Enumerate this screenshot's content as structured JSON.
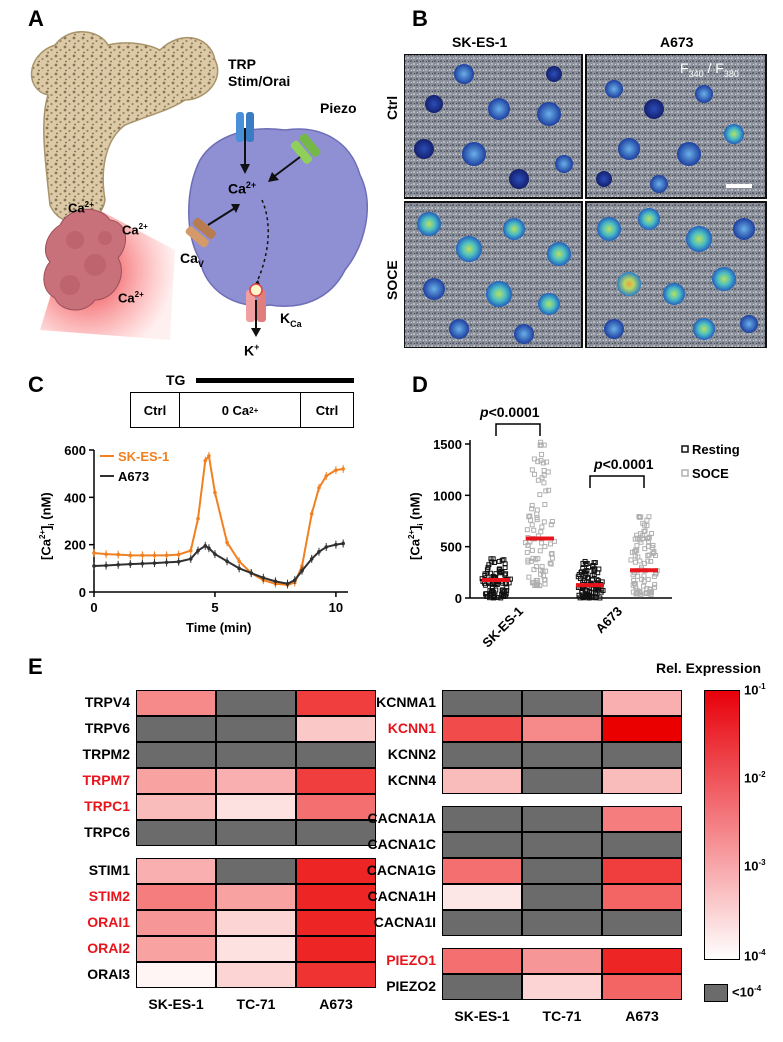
{
  "panels": {
    "a": "A",
    "b": "B",
    "c": "C",
    "d": "D",
    "e": "E"
  },
  "panel_a": {
    "channel_labels": {
      "trp": "TRP",
      "stim_orai": "Stim/Orai",
      "piezo": "Piezo",
      "cav": "Ca",
      "cav_sub": "V",
      "kca": "K",
      "kca_sub": "Ca",
      "kplus": "K",
      "kplus_sup": "+",
      "ca_cell": "Ca",
      "ca_sup": "2+"
    },
    "bone_ca_labels": [
      {
        "text": "Ca",
        "sup": "2+"
      },
      {
        "text": "Ca",
        "sup": "2+"
      },
      {
        "text": "Ca",
        "sup": "2+"
      }
    ],
    "colors": {
      "bone": "#d9c7a3",
      "bone_speckle": "#8b7355",
      "tumor": "#c9717b",
      "cell": "#8f8fd4",
      "trp": "#4a90d9",
      "piezo": "#8fcf5a",
      "cav": "#c98a5a",
      "kca": "#e89090"
    }
  },
  "panel_b": {
    "col_labels": [
      "SK-ES-1",
      "A673"
    ],
    "row_labels": [
      "Ctrl",
      "SOCE"
    ],
    "ratio_label": {
      "a": "F",
      "a_sub": "340",
      "sep": " / ",
      "b": "F",
      "b_sub": "380"
    }
  },
  "panel_c": {
    "tg_label": "TG",
    "protocol": [
      "Ctrl",
      "0 Ca",
      "Ctrl"
    ],
    "protocol_sup": "2+",
    "chart_data": {
      "type": "line",
      "xlabel": "Time (min)",
      "ylabel": "[Ca",
      "ylabel_sup": "2+",
      "ylabel_sub": "i",
      "ylabel_tail": " (nM)",
      "xlim": [
        0,
        10.5
      ],
      "ylim": [
        0,
        600
      ],
      "xticks": [
        0,
        5,
        10
      ],
      "yticks": [
        0,
        200,
        400,
        600
      ],
      "series": [
        {
          "name": "SK-ES-1",
          "color": "#f08020",
          "x": [
            0,
            0.5,
            1,
            1.5,
            2,
            2.5,
            3,
            3.5,
            4,
            4.3,
            4.6,
            4.75,
            5,
            5.5,
            6,
            6.5,
            7,
            7.5,
            8,
            8.3,
            8.6,
            9,
            9.3,
            9.6,
            10,
            10.3
          ],
          "y": [
            165,
            160,
            158,
            155,
            155,
            155,
            155,
            158,
            175,
            310,
            555,
            575,
            420,
            210,
            130,
            80,
            50,
            35,
            30,
            40,
            110,
            330,
            440,
            490,
            515,
            520
          ]
        },
        {
          "name": "A673",
          "color": "#303030",
          "x": [
            0,
            0.5,
            1,
            1.5,
            2,
            2.5,
            3,
            3.5,
            4,
            4.3,
            4.6,
            4.75,
            5,
            5.5,
            6,
            6.5,
            7,
            7.5,
            8,
            8.3,
            8.6,
            9,
            9.3,
            9.6,
            10,
            10.3
          ],
          "y": [
            110,
            112,
            115,
            118,
            120,
            122,
            125,
            128,
            140,
            175,
            195,
            185,
            160,
            130,
            100,
            80,
            60,
            45,
            35,
            50,
            90,
            140,
            170,
            190,
            200,
            205
          ]
        }
      ]
    }
  },
  "panel_d": {
    "chart_data": {
      "type": "scatter",
      "ylabel": "[Ca",
      "ylabel_sup": "2+",
      "ylabel_sub": "i",
      "ylabel_tail": " (nM)",
      "ylim": [
        0,
        1500
      ],
      "yticks": [
        0,
        500,
        1000,
        1500
      ],
      "categories": [
        "SK-ES-1",
        "A673"
      ],
      "series": [
        {
          "name": "Resting",
          "color": "#111111",
          "means": [
            175,
            125
          ],
          "spread": [
            [
              0,
              450
            ],
            [
              0,
              400
            ]
          ]
        },
        {
          "name": "SOCE",
          "color": "#b0b0b0",
          "means": [
            580,
            270
          ],
          "spread": [
            [
              120,
              1580
            ],
            [
              30,
              820
            ]
          ]
        }
      ],
      "annotations": [
        {
          "text": "p<0.0001",
          "p": "p",
          "rest": "<0.0001"
        },
        {
          "text": "p<0.0001",
          "p": "p",
          "rest": "<0.0001"
        }
      ]
    }
  },
  "panel_e": {
    "title": "Rel. Expression",
    "columns": [
      "SK-ES-1",
      "TC-71",
      "A673"
    ],
    "colorbar_ticks": [
      {
        "base": "10",
        "exp": "-1"
      },
      {
        "base": "10",
        "exp": "-2"
      },
      {
        "base": "10",
        "exp": "-3"
      },
      {
        "base": "10",
        "exp": "-4"
      }
    ],
    "below_label": "<10",
    "below_exp": "-4",
    "left_groups": [
      [
        {
          "gene": "TRPV4",
          "red": false,
          "cells": [
            0.45,
            -1,
            0.75
          ]
        },
        {
          "gene": "TRPV6",
          "red": false,
          "cells": [
            -1,
            -1,
            0.2
          ]
        },
        {
          "gene": "TRPM2",
          "red": false,
          "cells": [
            -1,
            -1,
            -1
          ]
        },
        {
          "gene": "TRPM7",
          "red": true,
          "cells": [
            0.35,
            0.3,
            0.75
          ]
        },
        {
          "gene": "TRPC1",
          "red": true,
          "cells": [
            0.25,
            0.1,
            0.55
          ]
        },
        {
          "gene": "TRPC6",
          "red": false,
          "cells": [
            -1,
            -1,
            -1
          ]
        }
      ],
      [
        {
          "gene": "STIM1",
          "red": false,
          "cells": [
            0.3,
            -1,
            0.85
          ]
        },
        {
          "gene": "STIM2",
          "red": true,
          "cells": [
            0.5,
            0.35,
            0.85
          ]
        },
        {
          "gene": "ORAI1",
          "red": true,
          "cells": [
            0.4,
            0.15,
            0.85
          ]
        },
        {
          "gene": "ORAI2",
          "red": true,
          "cells": [
            0.35,
            0.1,
            0.85
          ]
        },
        {
          "gene": "ORAI3",
          "red": false,
          "cells": [
            0.02,
            0.15,
            0.8
          ]
        }
      ]
    ],
    "right_groups": [
      [
        {
          "gene": "KCNMA1",
          "red": false,
          "cells": [
            -1,
            -1,
            0.3
          ]
        },
        {
          "gene": "KCNN1",
          "red": true,
          "cells": [
            0.7,
            0.45,
            1.0
          ]
        },
        {
          "gene": "KCNN2",
          "red": false,
          "cells": [
            -1,
            -1,
            -1
          ]
        },
        {
          "gene": "KCNN4",
          "red": false,
          "cells": [
            0.25,
            -1,
            0.25
          ]
        }
      ],
      [
        {
          "gene": "CACNA1A",
          "red": false,
          "cells": [
            -1,
            -1,
            0.5
          ]
        },
        {
          "gene": "CACNA1C",
          "red": false,
          "cells": [
            -1,
            -1,
            -1
          ]
        },
        {
          "gene": "CACNA1G",
          "red": false,
          "cells": [
            0.55,
            -1,
            0.75
          ]
        },
        {
          "gene": "CACNA1H",
          "red": false,
          "cells": [
            0.08,
            -1,
            0.6
          ]
        },
        {
          "gene": "CACNA1I",
          "red": false,
          "cells": [
            -1,
            -1,
            -1
          ]
        }
      ],
      [
        {
          "gene": "PIEZO1",
          "red": true,
          "cells": [
            0.55,
            0.4,
            0.85
          ]
        },
        {
          "gene": "PIEZO2",
          "red": false,
          "cells": [
            -1,
            0.15,
            0.6
          ]
        }
      ]
    ]
  }
}
